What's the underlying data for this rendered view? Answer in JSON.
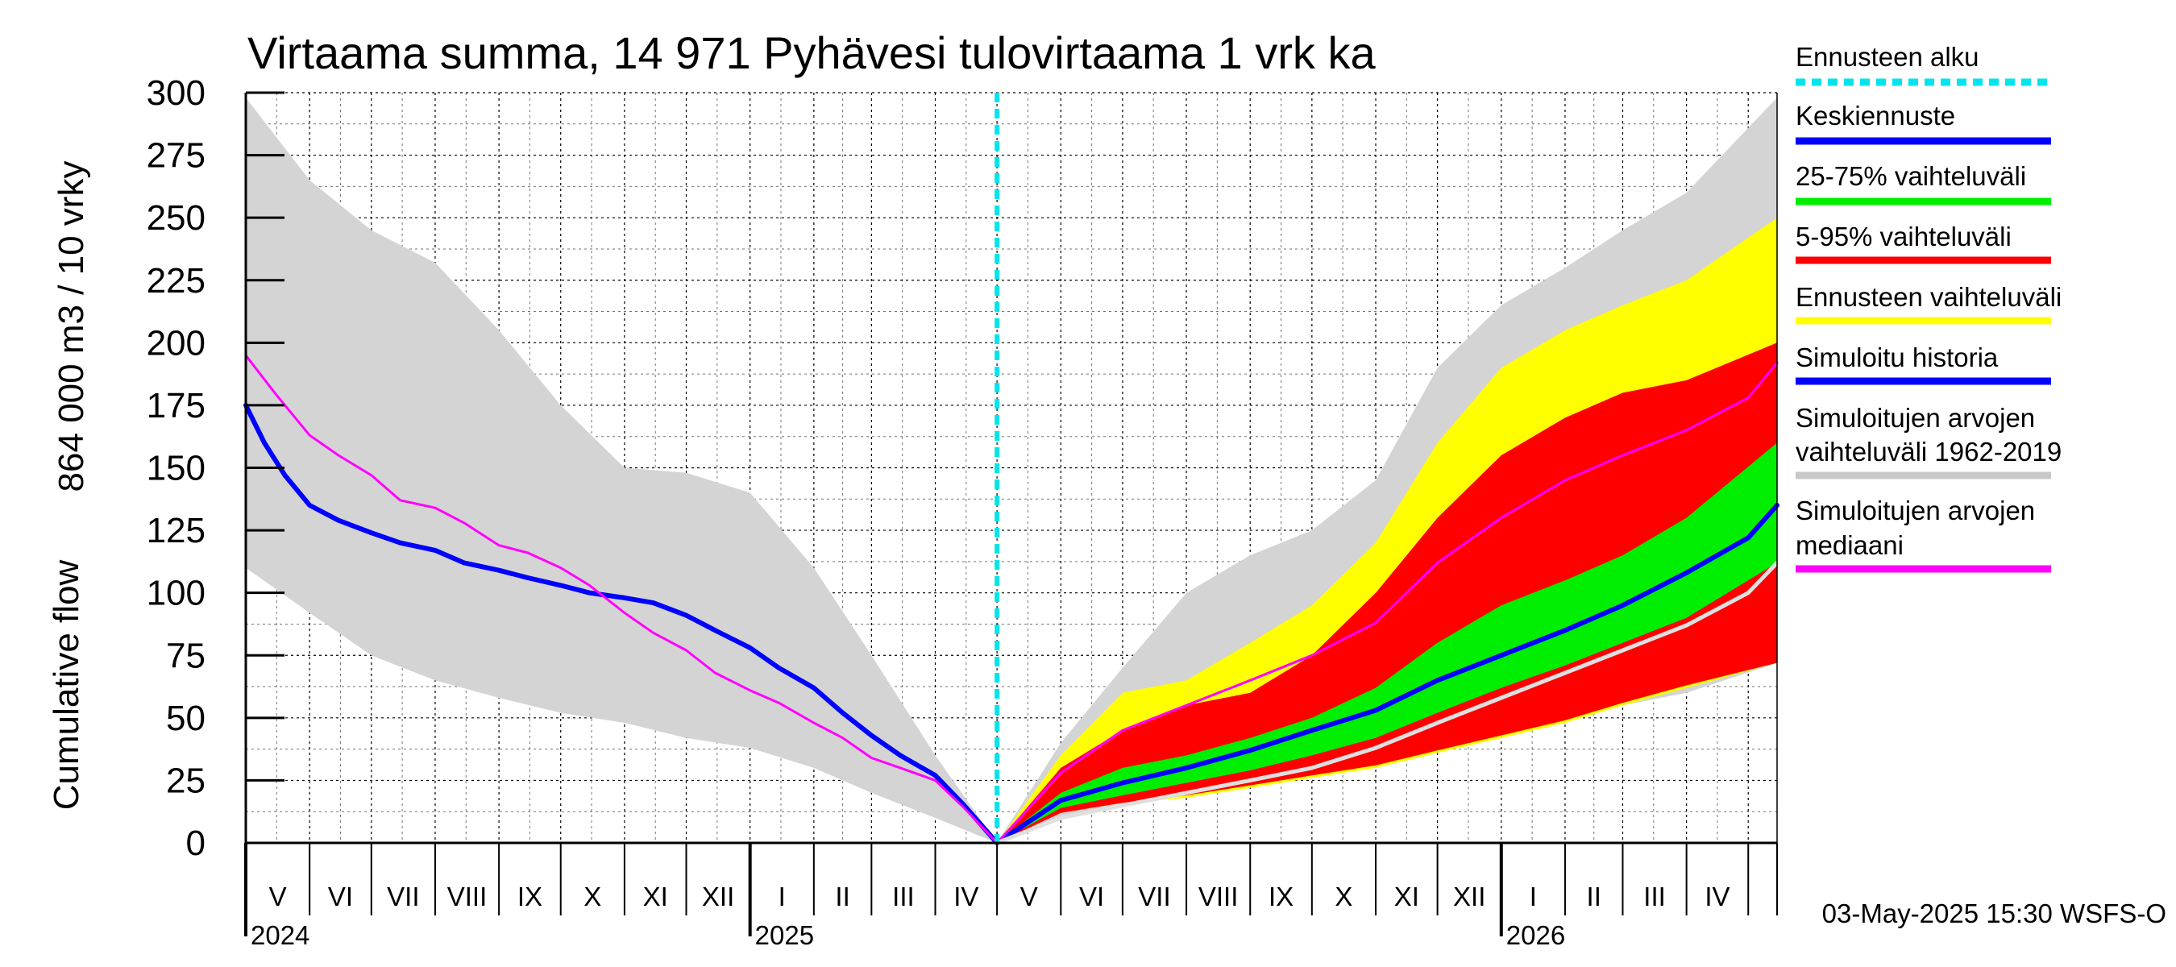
{
  "chart_data": {
    "type": "area",
    "title": "Virtaama summa, 14 971 Pyhävesi tulovirtaama 1 vrk ka",
    "ylabel_top": "864 000 m3 / 10 vrky",
    "ylabel_bottom": "Cumulative flow",
    "ylim": [
      0,
      300
    ],
    "yticks": [
      0,
      25,
      50,
      75,
      100,
      125,
      150,
      175,
      200,
      225,
      250,
      275,
      300
    ],
    "xlim": [
      "2024-05-01",
      "2026-05-15"
    ],
    "month_labels": [
      "V",
      "VI",
      "VII",
      "VIII",
      "IX",
      "X",
      "XI",
      "XII",
      "I",
      "II",
      "III",
      "IV",
      "V",
      "VI",
      "VII",
      "VIII",
      "IX",
      "X",
      "XI",
      "XII",
      "I",
      "II",
      "III",
      "IV"
    ],
    "year_labels": [
      "2024",
      "2025",
      "2026"
    ],
    "grid": true,
    "legend_position": "right",
    "forecast_start": "2025-05-01",
    "footer": "03-May-2025 15:30 WSFS-O",
    "legend": [
      {
        "label": "Ennusteen alku",
        "color": "#00e5ee",
        "style": "dashed"
      },
      {
        "label": "Keskiennuste",
        "color": "#0000ff",
        "style": "solid"
      },
      {
        "label": "25-75% vaihteluväli",
        "color": "#00ee00",
        "style": "solid"
      },
      {
        "label": "5-95% vaihteluväli",
        "color": "#ff0000",
        "style": "solid"
      },
      {
        "label": "Ennusteen vaihteluväli",
        "color": "#ffff00",
        "style": "solid"
      },
      {
        "label": "Simuloitu historia",
        "color": "#0000ff",
        "style": "solid"
      },
      {
        "label": "Simuloitujen arvojen\nvaihteluväli 1962-2019",
        "color": "#c8c8c8",
        "style": "solid"
      },
      {
        "label": "Simuloitujen arvojen\nmediaani",
        "color": "#ff00ff",
        "style": "solid"
      }
    ],
    "series": [
      {
        "name": "Simuloitujen arvojen vaihteluväli 1962-2019 (hist, max)",
        "kind": "band_upper",
        "x": [
          "2024-05-01",
          "2024-06-01",
          "2024-07-01",
          "2024-08-01",
          "2024-09-01",
          "2024-10-01",
          "2024-11-01",
          "2024-12-01",
          "2025-01-01",
          "2025-02-01",
          "2025-03-01",
          "2025-04-01",
          "2025-05-01"
        ],
        "y": [
          298,
          265,
          245,
          232,
          205,
          175,
          150,
          148,
          140,
          110,
          75,
          35,
          0
        ]
      },
      {
        "name": "Simuloitujen arvojen vaihteluväli 1962-2019 (hist, min)",
        "kind": "band_lower",
        "x": [
          "2024-05-01",
          "2024-06-01",
          "2024-07-01",
          "2024-08-01",
          "2024-09-01",
          "2024-10-01",
          "2024-11-01",
          "2024-12-01",
          "2025-01-01",
          "2025-02-01",
          "2025-03-01",
          "2025-04-01",
          "2025-05-01"
        ],
        "y": [
          110,
          92,
          75,
          65,
          58,
          52,
          48,
          42,
          38,
          30,
          20,
          10,
          0
        ]
      },
      {
        "name": "Simuloitujen arvojen vaihteluväli 1962-2019 (fcst, max)",
        "kind": "band_upper",
        "x": [
          "2025-05-01",
          "2025-06-01",
          "2025-07-01",
          "2025-08-01",
          "2025-09-01",
          "2025-10-01",
          "2025-11-01",
          "2025-12-01",
          "2026-01-01",
          "2026-02-01",
          "2026-03-01",
          "2026-04-01",
          "2026-05-15"
        ],
        "y": [
          0,
          40,
          70,
          100,
          115,
          125,
          145,
          190,
          215,
          230,
          245,
          260,
          298
        ]
      },
      {
        "name": "Simuloitujen arvojen vaihteluväli 1962-2019 (fcst, min)",
        "kind": "band_lower",
        "x": [
          "2025-05-01",
          "2025-06-01",
          "2025-07-01",
          "2025-08-01",
          "2025-09-01",
          "2025-10-01",
          "2025-11-01",
          "2025-12-01",
          "2026-01-01",
          "2026-02-01",
          "2026-03-01",
          "2026-04-01",
          "2026-05-15"
        ],
        "y": [
          0,
          10,
          15,
          20,
          25,
          30,
          35,
          40,
          45,
          50,
          55,
          60,
          72
        ]
      },
      {
        "name": "Ennusteen vaihteluväli (max)",
        "kind": "band_upper",
        "x": [
          "2025-05-01",
          "2025-06-01",
          "2025-07-01",
          "2025-08-01",
          "2025-09-01",
          "2025-10-01",
          "2025-11-01",
          "2025-12-01",
          "2026-01-01",
          "2026-02-01",
          "2026-03-01",
          "2026-04-01",
          "2026-05-15"
        ],
        "y": [
          0,
          35,
          60,
          65,
          80,
          95,
          120,
          160,
          190,
          205,
          215,
          225,
          250
        ]
      },
      {
        "name": "Ennusteen vaihteluväli (min)",
        "kind": "band_lower",
        "x": [
          "2025-05-01",
          "2025-06-01",
          "2025-07-01",
          "2025-08-01",
          "2025-09-01",
          "2025-10-01",
          "2025-11-01",
          "2025-12-01",
          "2026-01-01",
          "2026-02-01",
          "2026-03-01",
          "2026-04-01",
          "2026-05-15"
        ],
        "y": [
          0,
          12,
          16,
          18,
          22,
          26,
          30,
          36,
          42,
          48,
          55,
          62,
          72
        ]
      },
      {
        "name": "5-95% vaihteluväli (max)",
        "kind": "band_upper",
        "x": [
          "2025-05-01",
          "2025-06-01",
          "2025-07-01",
          "2025-08-01",
          "2025-09-01",
          "2025-10-01",
          "2025-11-01",
          "2025-12-01",
          "2026-01-01",
          "2026-02-01",
          "2026-03-01",
          "2026-04-01",
          "2026-05-15"
        ],
        "y": [
          0,
          30,
          45,
          55,
          60,
          75,
          100,
          130,
          155,
          170,
          180,
          185,
          200
        ]
      },
      {
        "name": "5-95% vaihteluväli (min)",
        "kind": "band_lower",
        "x": [
          "2025-05-01",
          "2025-06-01",
          "2025-07-01",
          "2025-08-01",
          "2025-09-01",
          "2025-10-01",
          "2025-11-01",
          "2025-12-01",
          "2026-01-01",
          "2026-02-01",
          "2026-03-01",
          "2026-04-01",
          "2026-05-15"
        ],
        "y": [
          0,
          12,
          16,
          19,
          23,
          27,
          31,
          37,
          43,
          49,
          56,
          63,
          72
        ]
      },
      {
        "name": "25-75% vaihteluväli (max)",
        "kind": "band_upper",
        "x": [
          "2025-05-01",
          "2025-06-01",
          "2025-07-01",
          "2025-08-01",
          "2025-09-01",
          "2025-10-01",
          "2025-11-01",
          "2025-12-01",
          "2026-01-01",
          "2026-02-01",
          "2026-03-01",
          "2026-04-01",
          "2026-05-15"
        ],
        "y": [
          0,
          20,
          30,
          35,
          42,
          50,
          62,
          80,
          95,
          105,
          115,
          130,
          160
        ]
      },
      {
        "name": "25-75% vaihteluväli (min)",
        "kind": "band_lower",
        "x": [
          "2025-05-01",
          "2025-06-01",
          "2025-07-01",
          "2025-08-01",
          "2025-09-01",
          "2025-10-01",
          "2025-11-01",
          "2025-12-01",
          "2026-01-01",
          "2026-02-01",
          "2026-03-01",
          "2026-04-01",
          "2026-05-15"
        ],
        "y": [
          0,
          14,
          19,
          24,
          29,
          35,
          42,
          52,
          62,
          71,
          80,
          90,
          112
        ]
      },
      {
        "name": "Simuloitu historia",
        "kind": "line",
        "color": "#0000ff",
        "width": 6,
        "x": [
          "2024-05-01",
          "2024-05-10",
          "2024-05-20",
          "2024-06-01",
          "2024-06-15",
          "2024-07-01",
          "2024-07-15",
          "2024-08-01",
          "2024-08-15",
          "2024-09-01",
          "2024-09-15",
          "2024-10-01",
          "2024-10-15",
          "2024-11-01",
          "2024-11-15",
          "2024-12-01",
          "2024-12-15",
          "2025-01-01",
          "2025-01-15",
          "2025-02-01",
          "2025-02-15",
          "2025-03-01",
          "2025-03-15",
          "2025-04-01",
          "2025-04-15",
          "2025-05-01"
        ],
        "y": [
          175,
          160,
          147,
          135,
          129,
          124,
          120,
          117,
          112,
          109,
          106,
          103,
          100,
          98,
          96,
          91,
          85,
          78,
          70,
          62,
          52,
          43,
          35,
          27,
          15,
          0
        ]
      },
      {
        "name": "Simuloitujen arvojen mediaani (hist)",
        "kind": "line",
        "color": "#ff00ff",
        "width": 3,
        "x": [
          "2024-05-01",
          "2024-05-15",
          "2024-06-01",
          "2024-06-15",
          "2024-07-01",
          "2024-07-15",
          "2024-08-01",
          "2024-08-15",
          "2024-09-01",
          "2024-09-15",
          "2024-10-01",
          "2024-10-15",
          "2024-11-01",
          "2024-11-15",
          "2024-12-01",
          "2024-12-15",
          "2025-01-01",
          "2025-01-15",
          "2025-02-01",
          "2025-02-15",
          "2025-03-01",
          "2025-03-15",
          "2025-04-01",
          "2025-04-15",
          "2025-05-01"
        ],
        "y": [
          195,
          180,
          163,
          155,
          147,
          137,
          134,
          128,
          119,
          116,
          110,
          103,
          92,
          84,
          77,
          68,
          61,
          56,
          48,
          42,
          34,
          30,
          25,
          14,
          0
        ]
      },
      {
        "name": "Keskiennuste",
        "kind": "line",
        "color": "#0000ff",
        "width": 6,
        "x": [
          "2025-05-01",
          "2025-06-01",
          "2025-07-01",
          "2025-08-01",
          "2025-09-01",
          "2025-10-01",
          "2025-11-01",
          "2025-12-01",
          "2026-01-01",
          "2026-02-01",
          "2026-03-01",
          "2026-04-01",
          "2026-05-01",
          "2026-05-15"
        ],
        "y": [
          0,
          17,
          24,
          30,
          37,
          45,
          53,
          65,
          75,
          85,
          95,
          108,
          122,
          135
        ]
      },
      {
        "name": "Simuloitujen arvojen mediaani (fcst)",
        "kind": "line",
        "color": "#ff00ff",
        "width": 3,
        "x": [
          "2025-05-01",
          "2025-06-01",
          "2025-07-01",
          "2025-08-01",
          "2025-09-01",
          "2025-10-01",
          "2025-11-01",
          "2025-12-01",
          "2026-01-01",
          "2026-02-01",
          "2026-03-01",
          "2026-04-01",
          "2026-05-01",
          "2026-05-15"
        ],
        "y": [
          0,
          28,
          45,
          55,
          65,
          75,
          88,
          112,
          130,
          145,
          155,
          165,
          178,
          192
        ]
      },
      {
        "name": "Simuloitujen arvojen mediaani 1962-2019 (fcst)",
        "kind": "line",
        "color": "#e0e0e0",
        "width": 5,
        "x": [
          "2025-05-01",
          "2025-06-01",
          "2025-07-01",
          "2025-08-01",
          "2025-09-01",
          "2025-10-01",
          "2025-11-01",
          "2025-12-01",
          "2026-01-01",
          "2026-02-01",
          "2026-03-01",
          "2026-04-01",
          "2026-05-01",
          "2026-05-15"
        ],
        "y": [
          0,
          10,
          15,
          20,
          25,
          30,
          38,
          48,
          58,
          68,
          77,
          87,
          100,
          112
        ]
      }
    ]
  }
}
